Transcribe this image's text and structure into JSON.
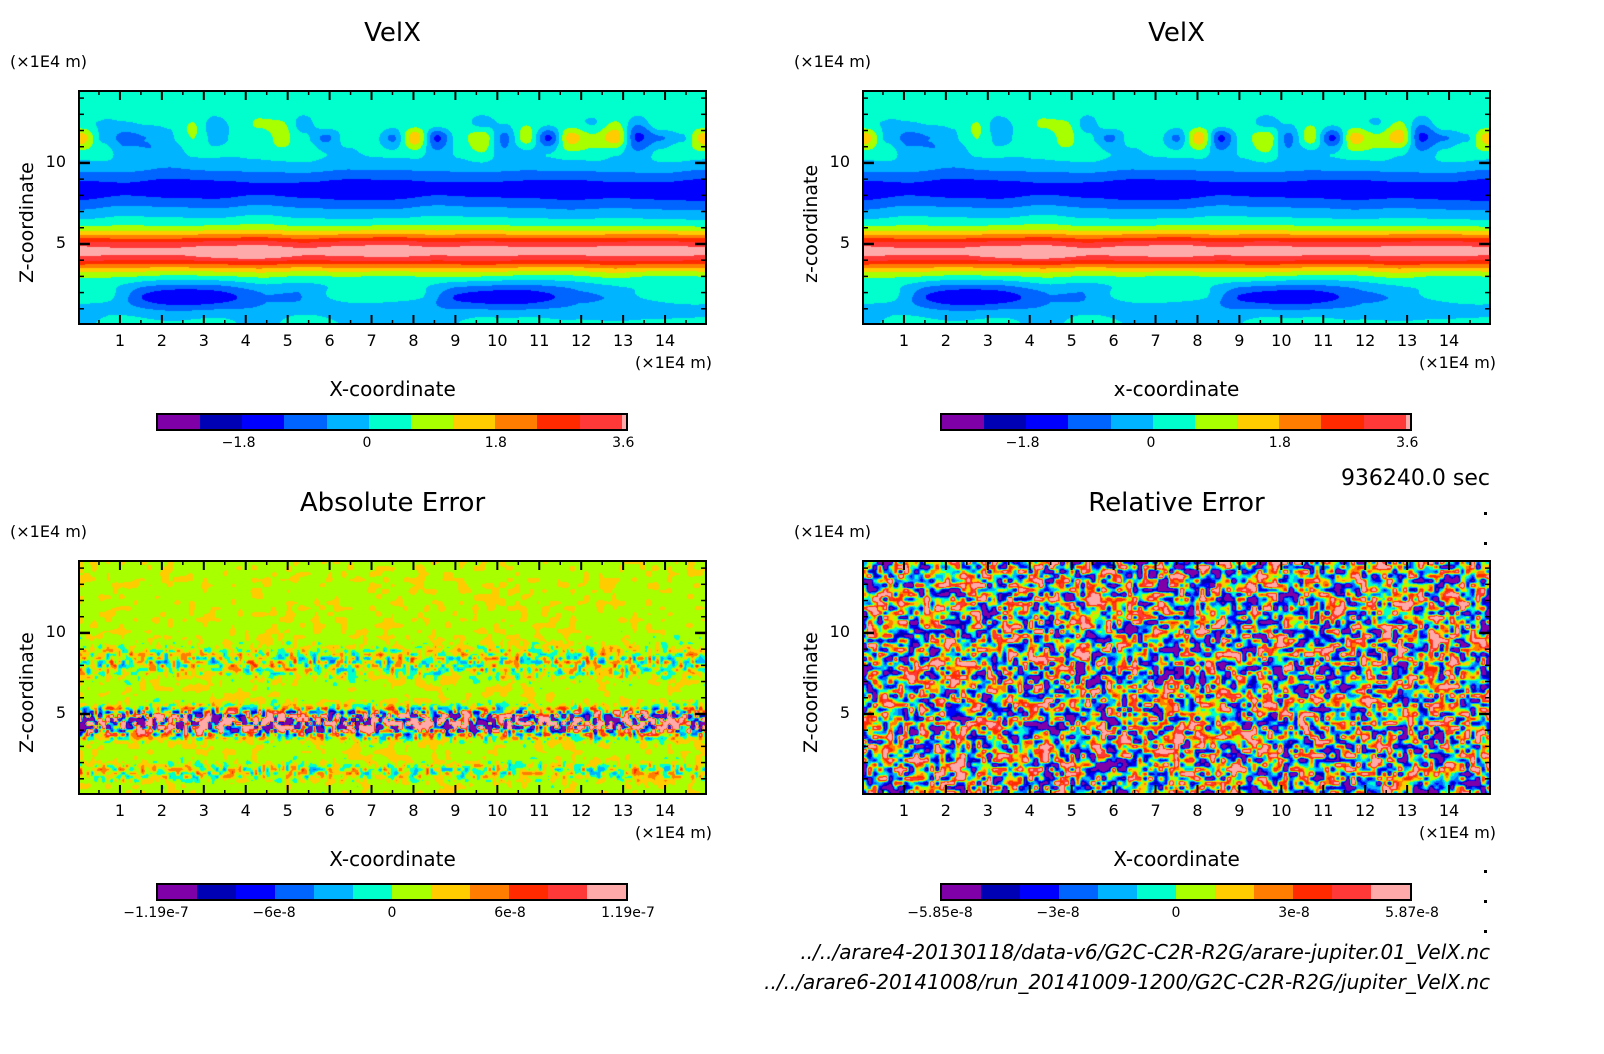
{
  "chart_data": [
    {
      "type": "heatmap",
      "id": "velx-left",
      "title": "VelX",
      "xlabel": "X-coordinate",
      "ylabel": "Z-coordinate",
      "x_unit": "(×1E4 m)",
      "y_unit": "(×1E4 m)",
      "xlim": [
        0,
        15
      ],
      "ylim": [
        0,
        14.5
      ],
      "xticks": [
        "1",
        "2",
        "3",
        "4",
        "5",
        "6",
        "7",
        "8",
        "9",
        "10",
        "11",
        "12",
        "13",
        "14"
      ],
      "yticks": [
        "5",
        "10"
      ],
      "colorbar": {
        "colors": [
          "#8000a8",
          "#0000b4",
          "#0000ff",
          "#0064ff",
          "#00b4ff",
          "#00ffcc",
          "#a8ff00",
          "#ffcc00",
          "#ff7d00",
          "#ff2a00",
          "#ff3838",
          "#ffaaaa"
        ],
        "tick_labels": [
          "-1.8",
          "0",
          "1.8",
          "3.6"
        ],
        "range": [
          -3.6,
          3.6
        ]
      },
      "pattern": "smooth-bands"
    },
    {
      "type": "heatmap",
      "id": "velx-right",
      "title": "VelX",
      "xlabel": "x-coordinate",
      "ylabel": "z-coordinate",
      "x_unit": "(×1E4 m)",
      "y_unit": "(×1E4 m)",
      "xlim": [
        0,
        15
      ],
      "ylim": [
        0,
        14.5
      ],
      "xticks": [
        "1",
        "2",
        "3",
        "4",
        "5",
        "6",
        "7",
        "8",
        "9",
        "10",
        "11",
        "12",
        "13",
        "14"
      ],
      "yticks": [
        "5",
        "10"
      ],
      "colorbar": {
        "colors": [
          "#8000a8",
          "#0000b4",
          "#0000ff",
          "#0064ff",
          "#00b4ff",
          "#00ffcc",
          "#a8ff00",
          "#ffcc00",
          "#ff7d00",
          "#ff2a00",
          "#ff3838",
          "#ffaaaa"
        ],
        "tick_labels": [
          "-1.8",
          "0",
          "1.8",
          "3.6"
        ],
        "range": [
          -3.6,
          3.6
        ]
      },
      "pattern": "smooth-bands"
    },
    {
      "type": "heatmap",
      "id": "absolute-error",
      "title": "Absolute Error",
      "xlabel": "X-coordinate",
      "ylabel": "Z-coordinate",
      "x_unit": "(×1E4 m)",
      "y_unit": "(×1E4 m)",
      "xlim": [
        0,
        15
      ],
      "ylim": [
        0,
        14.5
      ],
      "xticks": [
        "1",
        "2",
        "3",
        "4",
        "5",
        "6",
        "7",
        "8",
        "9",
        "10",
        "11",
        "12",
        "13",
        "14"
      ],
      "yticks": [
        "5",
        "10"
      ],
      "colorbar": {
        "colors": [
          "#8000a8",
          "#0000b4",
          "#0000ff",
          "#0064ff",
          "#00b4ff",
          "#00ffcc",
          "#a8ff00",
          "#ffcc00",
          "#ff7d00",
          "#ff2a00",
          "#ff3838",
          "#ffaaaa"
        ],
        "tick_labels": [
          "-1.19e-7",
          "-6e-8",
          "0",
          "6e-8",
          "1.19e-7"
        ],
        "range": [
          -1.19e-07,
          1.19e-07
        ]
      },
      "pattern": "noise-with-band"
    },
    {
      "type": "heatmap",
      "id": "relative-error",
      "title": "Relative Error",
      "xlabel": "X-coordinate",
      "ylabel": "Z-coordinate",
      "x_unit": "(×1E4 m)",
      "y_unit": "(×1E4 m)",
      "xlim": [
        0,
        15
      ],
      "ylim": [
        0,
        14.5
      ],
      "xticks": [
        "1",
        "2",
        "3",
        "4",
        "5",
        "6",
        "7",
        "8",
        "9",
        "10",
        "11",
        "12",
        "13",
        "14"
      ],
      "yticks": [
        "5",
        "10"
      ],
      "colorbar": {
        "colors": [
          "#8000a8",
          "#0000b4",
          "#0000ff",
          "#0064ff",
          "#00b4ff",
          "#00ffcc",
          "#a8ff00",
          "#ffcc00",
          "#ff7d00",
          "#ff2a00",
          "#ff3838",
          "#ffaaaa"
        ],
        "tick_labels": [
          "-5.85e-8",
          "-3e-8",
          "0",
          "3e-8",
          "5.87e-8"
        ],
        "range": [
          -5.85e-08,
          5.87e-08
        ]
      },
      "pattern": "noise"
    }
  ],
  "time_label": "936240.0 sec",
  "files": [
    "../../arare4-20130118/data-v6/G2C-C2R-R2G/arare-jupiter.01_VelX.nc",
    "../../arare6-20141008/run_20141009-1200/G2C-C2R-R2G/jupiter_VelX.nc"
  ]
}
